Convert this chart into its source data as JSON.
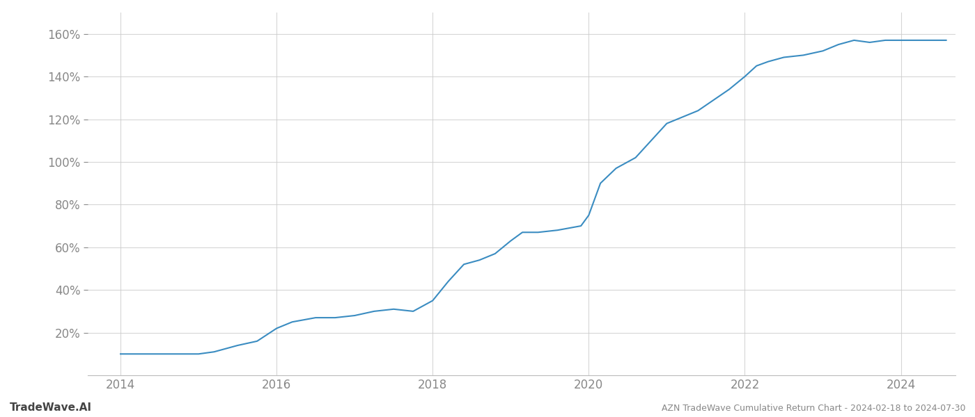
{
  "title": "AZN TradeWave Cumulative Return Chart - 2024-02-18 to 2024-07-30",
  "watermark": "TradeWave.AI",
  "line_color": "#3a8cc1",
  "background_color": "#ffffff",
  "grid_color": "#cccccc",
  "text_color": "#888888",
  "data_points": [
    {
      "year": 2014.0,
      "value": 10
    },
    {
      "year": 2014.5,
      "value": 10
    },
    {
      "year": 2015.0,
      "value": 10
    },
    {
      "year": 2015.2,
      "value": 11
    },
    {
      "year": 2015.5,
      "value": 14
    },
    {
      "year": 2015.75,
      "value": 16
    },
    {
      "year": 2016.0,
      "value": 22
    },
    {
      "year": 2016.2,
      "value": 25
    },
    {
      "year": 2016.5,
      "value": 27
    },
    {
      "year": 2016.75,
      "value": 27
    },
    {
      "year": 2017.0,
      "value": 28
    },
    {
      "year": 2017.25,
      "value": 30
    },
    {
      "year": 2017.5,
      "value": 31
    },
    {
      "year": 2017.75,
      "value": 30
    },
    {
      "year": 2018.0,
      "value": 35
    },
    {
      "year": 2018.2,
      "value": 44
    },
    {
      "year": 2018.4,
      "value": 52
    },
    {
      "year": 2018.6,
      "value": 54
    },
    {
      "year": 2018.8,
      "value": 57
    },
    {
      "year": 2019.0,
      "value": 63
    },
    {
      "year": 2019.15,
      "value": 67
    },
    {
      "year": 2019.35,
      "value": 67
    },
    {
      "year": 2019.6,
      "value": 68
    },
    {
      "year": 2019.9,
      "value": 70
    },
    {
      "year": 2020.0,
      "value": 75
    },
    {
      "year": 2020.15,
      "value": 90
    },
    {
      "year": 2020.35,
      "value": 97
    },
    {
      "year": 2020.6,
      "value": 102
    },
    {
      "year": 2020.8,
      "value": 110
    },
    {
      "year": 2021.0,
      "value": 118
    },
    {
      "year": 2021.2,
      "value": 121
    },
    {
      "year": 2021.4,
      "value": 124
    },
    {
      "year": 2021.6,
      "value": 129
    },
    {
      "year": 2021.8,
      "value": 134
    },
    {
      "year": 2022.0,
      "value": 140
    },
    {
      "year": 2022.15,
      "value": 145
    },
    {
      "year": 2022.3,
      "value": 147
    },
    {
      "year": 2022.5,
      "value": 149
    },
    {
      "year": 2022.75,
      "value": 150
    },
    {
      "year": 2023.0,
      "value": 152
    },
    {
      "year": 2023.2,
      "value": 155
    },
    {
      "year": 2023.4,
      "value": 157
    },
    {
      "year": 2023.6,
      "value": 156
    },
    {
      "year": 2023.8,
      "value": 157
    },
    {
      "year": 2024.0,
      "value": 157
    },
    {
      "year": 2024.3,
      "value": 157
    },
    {
      "year": 2024.58,
      "value": 157
    }
  ],
  "ylim": [
    0,
    170
  ],
  "yticks": [
    20,
    40,
    60,
    80,
    100,
    120,
    140,
    160
  ],
  "xlim": [
    2013.58,
    2024.7
  ],
  "xticks": [
    2014,
    2016,
    2018,
    2020,
    2022,
    2024
  ]
}
